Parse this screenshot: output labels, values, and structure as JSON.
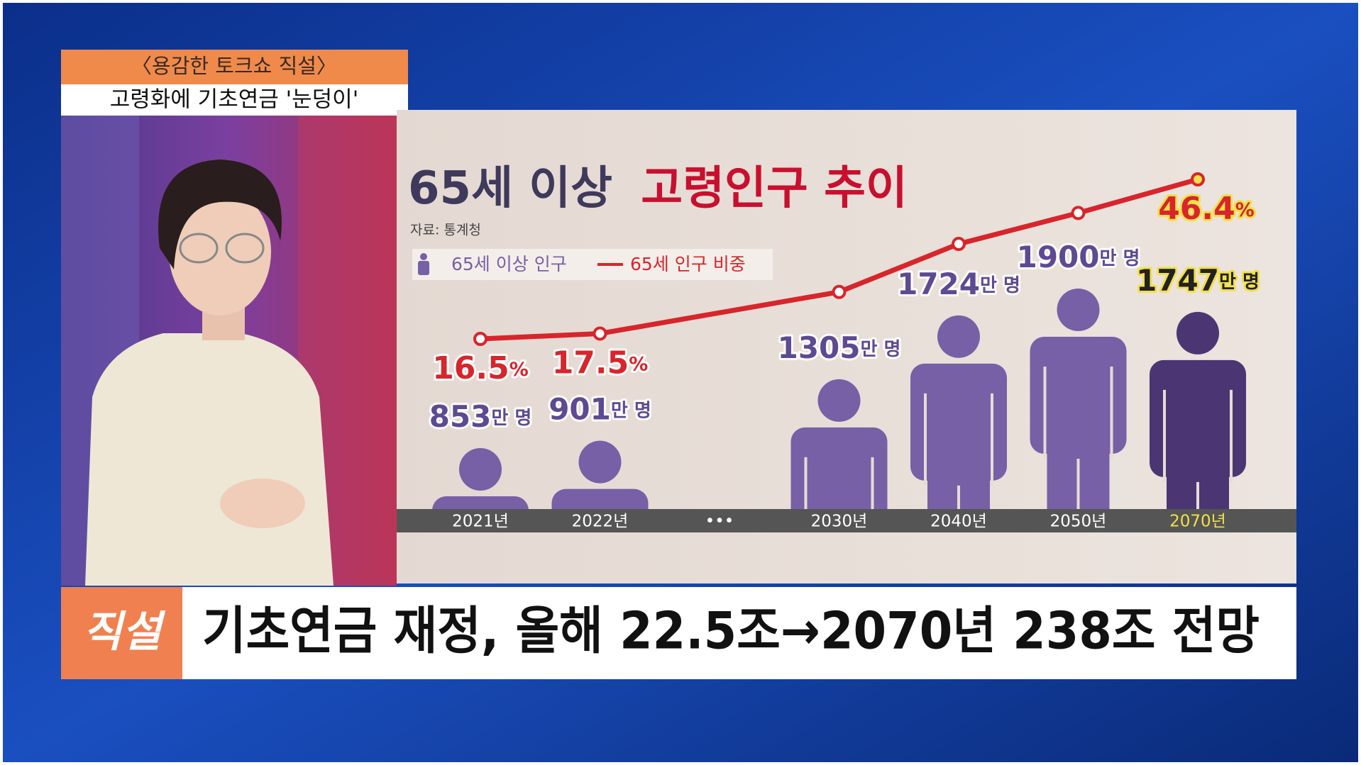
{
  "show": {
    "program": "〈용감한 토크쇼 직설〉",
    "headline": "고령화에 기초연금 '눈덩이'"
  },
  "lower_third": {
    "tag": "직설",
    "caption": "기초연금 재정, 올해 22.5조→2070년 238조 전망"
  },
  "chart_data": {
    "type": "combo",
    "title": {
      "lead": "65세 이상",
      "highlight": "고령인구 추이"
    },
    "source": "자료: 통계청",
    "categories": [
      "2021년",
      "2022년",
      "•••",
      "2030년",
      "2040년",
      "2050년",
      "2070년"
    ],
    "highlight_color": "#4b3673",
    "highlight_label_color": "#f2e04a",
    "series": [
      {
        "name": "65세 이상 인구",
        "type": "pictogram",
        "color": "#7760a6",
        "values": [
          853,
          901,
          null,
          1305,
          1724,
          1900,
          1747
        ],
        "value_labels": [
          "853만 명",
          "901만 명",
          null,
          "1305만 명",
          "1724만 명",
          "1900만 명",
          "1747만 명"
        ]
      },
      {
        "name": "65세 인구 비중",
        "type": "line",
        "color": "#d8252b",
        "values": [
          16.5,
          17.5,
          null,
          25.3,
          34.3,
          40.1,
          46.4
        ],
        "value_labels": [
          "16.5%",
          "17.5%",
          null,
          null,
          null,
          null,
          "46.4%"
        ]
      }
    ]
  }
}
